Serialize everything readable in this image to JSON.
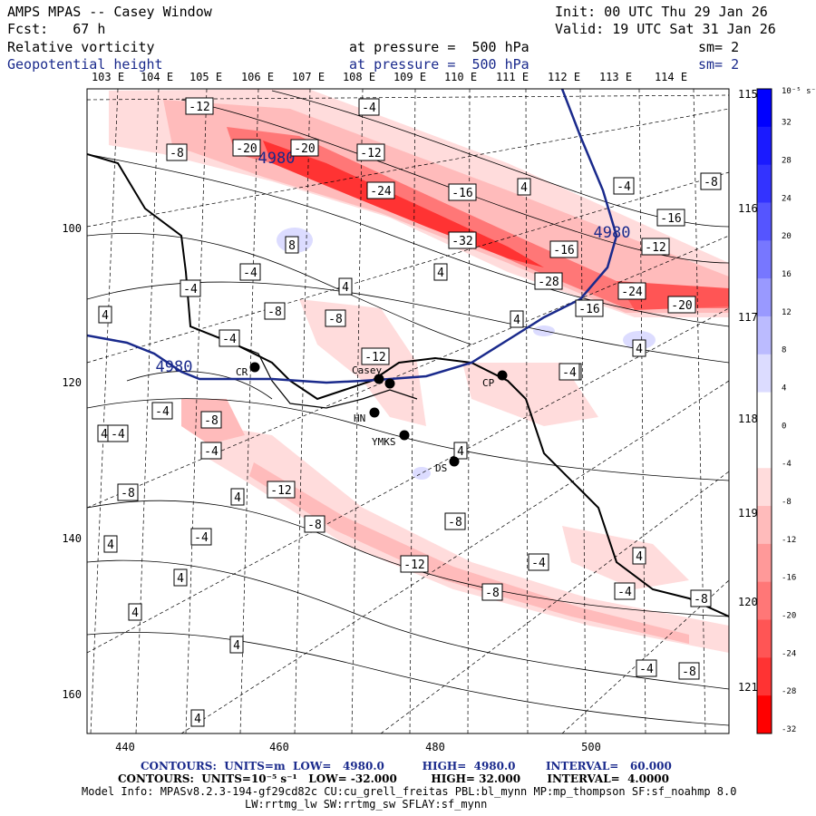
{
  "header": {
    "title": "AMPS MPAS -- Casey Window",
    "init": "Init: 00 UTC Thu 29 Jan 26",
    "forecast": "Fcst:   67 h",
    "valid": "Valid: 19 UTC Sat 31 Jan 26",
    "field1": {
      "name": "Relative vorticity",
      "pressure": "at pressure =  500 hPa",
      "sm": "sm= 2"
    },
    "field2": {
      "name": "Geopotential height",
      "pressure": "at pressure =  500 hPa",
      "sm": "sm= 2"
    }
  },
  "axes": {
    "top_lon": [
      "103 E",
      "104 E",
      "105 E",
      "106 E",
      "107 E",
      "108 E",
      "109 E",
      "110 E",
      "111 E",
      "112 E",
      "113 E",
      "114 E"
    ],
    "right_lon": [
      "115 E",
      "116 E",
      "117 E",
      "118 E",
      "119 E",
      "120 E",
      "121 E"
    ],
    "left_y": [
      "100",
      "120",
      "140",
      "160"
    ],
    "bottom_x": [
      "440",
      "460",
      "480",
      "500"
    ]
  },
  "colorbar": {
    "units": "10⁻⁵ s⁻¹",
    "ticks": [
      "32",
      "28",
      "24",
      "20",
      "16",
      "12",
      "8",
      "4",
      "0",
      "-4",
      "-8",
      "-12",
      "-16",
      "-20",
      "-24",
      "-28",
      "-32"
    ],
    "colors": [
      "#0000ff",
      "#1a1aff",
      "#3333ff",
      "#5555ff",
      "#7777ff",
      "#9999ff",
      "#bbbbff",
      "#dcdcff",
      "#ffffff",
      "#ffffff",
      "#ffdcdc",
      "#ffbbbb",
      "#ff9999",
      "#ff7777",
      "#ff5555",
      "#ff3333",
      "#ff0000"
    ]
  },
  "stations": [
    {
      "name": "Casey"
    },
    {
      "name": "CR"
    },
    {
      "name": "HN"
    },
    {
      "name": "YMKS"
    },
    {
      "name": "DS"
    },
    {
      "name": "CP"
    }
  ],
  "height_labels": [
    "4980",
    "4980",
    "4980"
  ],
  "contour_labels": [
    "-12",
    "-4",
    "-8",
    "-20",
    "-20",
    "4",
    "-12",
    "-24",
    "-16",
    "4",
    "-4",
    "-8",
    "-16",
    "-32",
    "-12",
    "-16",
    "8",
    "-4",
    "-4",
    "-16",
    "-28",
    "-24",
    "-20",
    "4",
    "-8",
    "-8",
    "4",
    "4",
    "-4",
    "-12",
    "4",
    "-4",
    "-8",
    "-4",
    "-4",
    "-8",
    "4",
    "4",
    "4",
    "-4",
    "4",
    "-12",
    "-8",
    "-4",
    "-8",
    "4",
    "-4",
    "-12",
    "-4",
    "-8",
    "4",
    "-4",
    "-8",
    "4",
    "4",
    "4",
    "-4",
    "-8"
  ],
  "footer": {
    "line1": "CONTOURS:  UNITS=m  LOW=   4980.0          HIGH=  4980.0        INTERVAL=   60.000",
    "line2": "CONTOURS:  UNITS=10⁻⁵ s⁻¹   LOW= -32.000         HIGH= 32.000       INTERVAL=  4.0000",
    "line3": "Model Info: MPASv8.2.3-194-gf29cd82c CU:cu_grell_freitas PBL:bl_mynn MP:mp_thompson SF:sf_noahmp 8.0",
    "line4": "LW:rrtmg_lw SW:rrtmg_sw SFLAY:sf_mynn"
  }
}
